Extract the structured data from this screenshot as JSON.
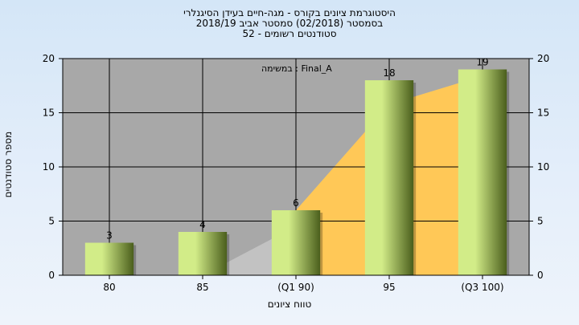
{
  "chart_data": {
    "type": "bar",
    "title_lines": [
      "היסטוגרמת ציונים בקורס - מגה-חיים בעידן הסיגנלרי",
      "בסמסטר (02/2018) סמסטר אביב 2018/19",
      "סטודנטים רשומים - 52"
    ],
    "annotation": "במשימה : Final_A",
    "xlabel": "טווח ציונים",
    "ylabel": "מספר סטודנטים",
    "categories": [
      "80",
      "85",
      "(Q1 90)",
      "95",
      "(Q3 100)"
    ],
    "values": [
      3,
      4,
      6,
      18,
      19
    ],
    "data_labels": [
      "3",
      "4",
      "6",
      "18",
      "19"
    ],
    "ylim": [
      0,
      20
    ],
    "yticks": [
      0,
      5,
      10,
      15,
      20
    ],
    "grid": true,
    "secondary_axis": true,
    "colors": {
      "plot_bg": "#a8a8a8",
      "bar_light": "#d2ec88",
      "bar_dark": "#4a5e1c",
      "area_orange": "#ffc857",
      "area_gray": "#c2c2c2"
    }
  }
}
